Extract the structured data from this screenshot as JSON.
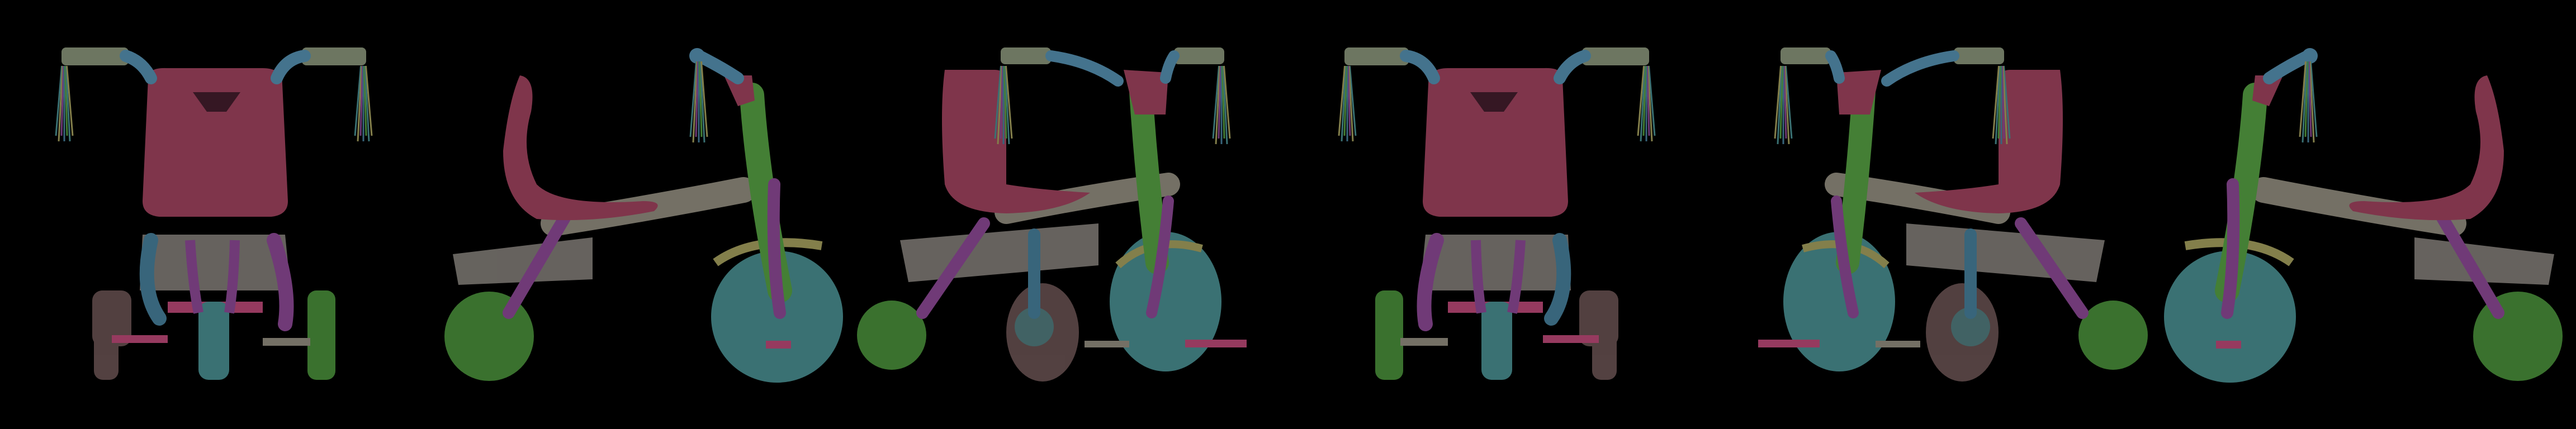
{
  "canvas": {
    "background": "#000000"
  },
  "palette": {
    "seat": "#8a3a52",
    "seat_edge": "#7a3248",
    "frame_grey": "#7e7a6e",
    "deck": "#6f6b66",
    "front_wheel_teal": "#3f7b7d",
    "rear_wheel_green": "#3f7b32",
    "rear_wheel_brown": "#5a4646",
    "fork_green": "#4a8a3a",
    "purple_strut": "#7a3f82",
    "blue_strut": "#3d6e86",
    "handlebar_grip": "#77806a",
    "handlebar_bar": "#4a7d9a",
    "pedal_pink": "#a33f68",
    "fender_olive": "#8f8a52",
    "neck_tan": "#8c8a4e",
    "tassel_colors": [
      "#3f7b7d",
      "#8f8a52",
      "#7a3f82",
      "#3d6e86",
      "#4a8a3a"
    ]
  },
  "views": [
    {
      "id": "view-1",
      "label": "front-left",
      "kind": "front",
      "mirror": false
    },
    {
      "id": "view-2",
      "label": "side-left",
      "kind": "side",
      "mirror": false
    },
    {
      "id": "view-3",
      "label": "three-quarter-left",
      "kind": "threequarter",
      "mirror": false
    },
    {
      "id": "view-4",
      "label": "front-right",
      "kind": "front",
      "mirror": true
    },
    {
      "id": "view-5",
      "label": "three-quarter-right",
      "kind": "threequarter",
      "mirror": true
    },
    {
      "id": "view-6",
      "label": "side-right",
      "kind": "side",
      "mirror": true
    }
  ]
}
